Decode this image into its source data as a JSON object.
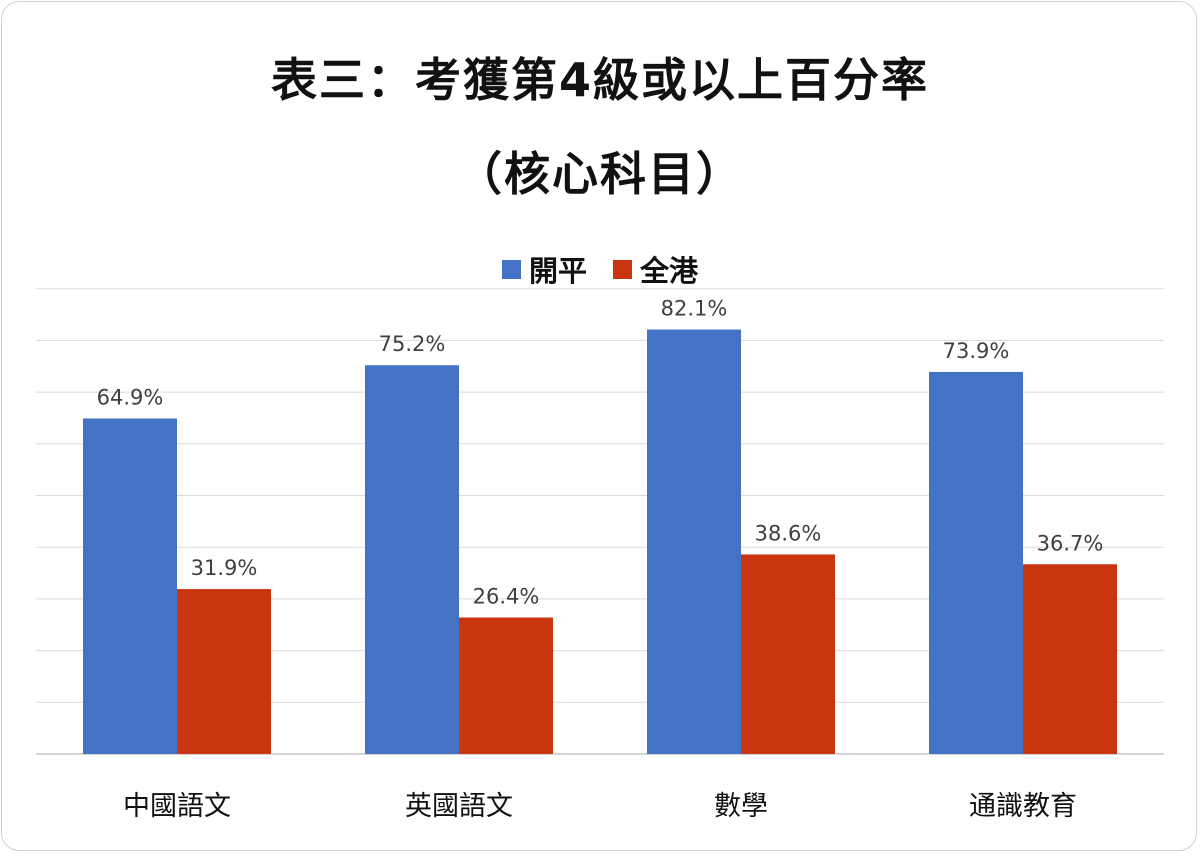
{
  "chart_data": {
    "type": "bar",
    "title": "表三：考獲第4級或以上百分率",
    "subtitle": "（核心科目）",
    "categories": [
      "中國語文",
      "英國語文",
      "數學",
      "通識教育"
    ],
    "series": [
      {
        "name": "開平",
        "values": [
          64.9,
          75.2,
          82.1,
          73.9
        ],
        "labels": [
          "64.9%",
          "75.2%",
          "82.1%",
          "73.9%"
        ],
        "color": "#4472C4"
      },
      {
        "name": "全港",
        "values": [
          31.9,
          26.4,
          38.6,
          36.7
        ],
        "labels": [
          "31.9%",
          "26.4%",
          "38.6%",
          "36.7%"
        ],
        "color": "#C9350F"
      }
    ],
    "ylim": [
      0,
      90
    ],
    "grid": true,
    "legend": "top-center"
  }
}
